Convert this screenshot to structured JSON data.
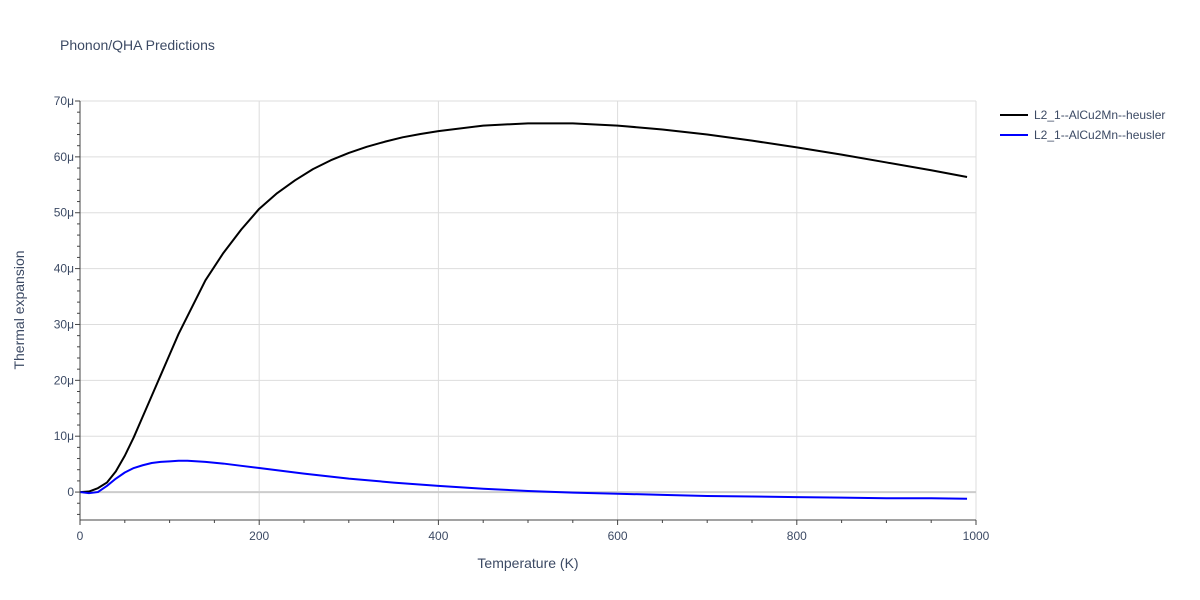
{
  "chart_data": {
    "type": "line",
    "title": "Phonon/QHA Predictions",
    "xlabel": "Temperature (K)",
    "ylabel": "Thermal expansion",
    "xlim": [
      0,
      1000
    ],
    "ylim": [
      -5e-06,
      7e-05
    ],
    "x_ticks": [
      {
        "value": 0,
        "label": "0"
      },
      {
        "value": 200,
        "label": "200"
      },
      {
        "value": 400,
        "label": "400"
      },
      {
        "value": 600,
        "label": "600"
      },
      {
        "value": 800,
        "label": "800"
      },
      {
        "value": 1000,
        "label": "1000"
      }
    ],
    "y_ticks": [
      {
        "value": 0,
        "label": "0"
      },
      {
        "value": 1e-05,
        "label": "10μ"
      },
      {
        "value": 2e-05,
        "label": "20μ"
      },
      {
        "value": 3e-05,
        "label": "30μ"
      },
      {
        "value": 4e-05,
        "label": "40μ"
      },
      {
        "value": 5e-05,
        "label": "50μ"
      },
      {
        "value": 6e-05,
        "label": "60μ"
      },
      {
        "value": 7e-05,
        "label": "70μ"
      }
    ],
    "grid": true,
    "legend_position": "top-right",
    "series": [
      {
        "name": "L2_1--AlCu2Mn--heusler",
        "color": "#000000",
        "x": [
          0,
          10,
          20,
          30,
          40,
          50,
          60,
          70,
          80,
          90,
          100,
          110,
          120,
          140,
          160,
          180,
          200,
          220,
          240,
          260,
          280,
          300,
          320,
          340,
          360,
          380,
          400,
          450,
          500,
          550,
          600,
          650,
          700,
          750,
          800,
          850,
          900,
          950,
          990
        ],
        "y": [
          0,
          1e-07,
          7e-07,
          1.7e-06,
          3.7e-06,
          6.5e-06,
          9.8e-06,
          1.35e-05,
          1.72e-05,
          2.09e-05,
          2.46e-05,
          2.83e-05,
          3.15e-05,
          3.79e-05,
          4.28e-05,
          4.7e-05,
          5.07e-05,
          5.35e-05,
          5.58e-05,
          5.78e-05,
          5.94e-05,
          6.07e-05,
          6.18e-05,
          6.27e-05,
          6.35e-05,
          6.41e-05,
          6.46e-05,
          6.56e-05,
          6.6e-05,
          6.6e-05,
          6.56e-05,
          6.49e-05,
          6.4e-05,
          6.29e-05,
          6.17e-05,
          6.04e-05,
          5.9e-05,
          5.76e-05,
          5.64e-05
        ]
      },
      {
        "name": "L2_1--AlCu2Mn--heusler",
        "color": "#0000ff",
        "x": [
          0,
          10,
          20,
          30,
          40,
          50,
          60,
          70,
          80,
          90,
          100,
          110,
          120,
          140,
          160,
          180,
          200,
          250,
          300,
          350,
          400,
          450,
          500,
          550,
          600,
          650,
          700,
          750,
          800,
          850,
          900,
          950,
          990
        ],
        "y": [
          0,
          -2e-07,
          0,
          1.1e-06,
          2.4e-06,
          3.5e-06,
          4.3e-06,
          4.8e-06,
          5.2e-06,
          5.4e-06,
          5.5e-06,
          5.6e-06,
          5.6e-06,
          5.4e-06,
          5.1e-06,
          4.7e-06,
          4.3e-06,
          3.3e-06,
          2.4e-06,
          1.7e-06,
          1.1e-06,
          6e-07,
          2e-07,
          -1e-07,
          -3e-07,
          -5e-07,
          -7e-07,
          -8e-07,
          -9e-07,
          -1e-06,
          -1.1e-06,
          -1.1e-06,
          -1.2e-06
        ]
      }
    ]
  }
}
